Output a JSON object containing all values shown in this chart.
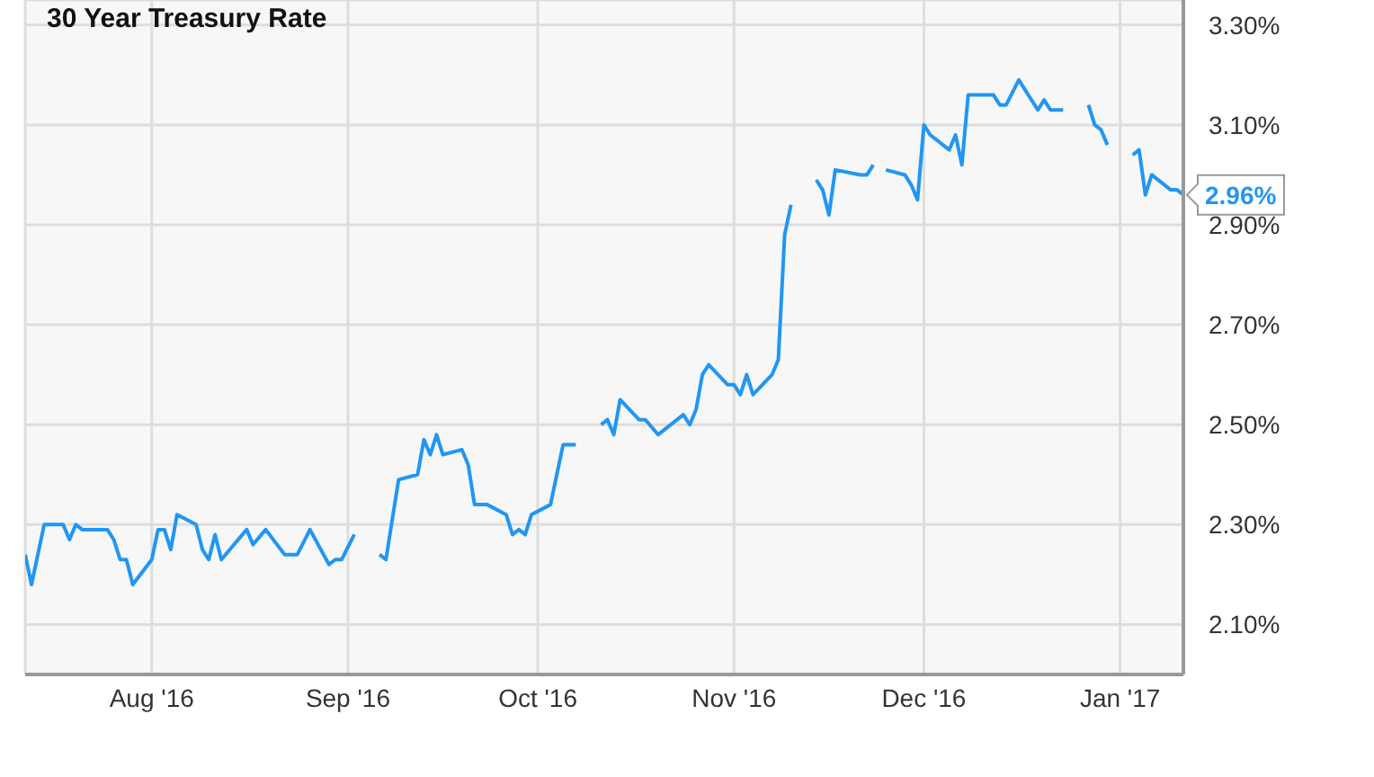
{
  "chart_data": {
    "type": "line",
    "title": "30 Year Treasury Rate",
    "x": [
      "2016-07-12",
      "2016-07-13",
      "2016-07-15",
      "2016-07-18",
      "2016-07-19",
      "2016-07-20",
      "2016-07-21",
      "2016-07-25",
      "2016-07-26",
      "2016-07-27",
      "2016-07-28",
      "2016-07-29",
      "2016-08-01",
      "2016-08-02",
      "2016-08-03",
      "2016-08-04",
      "2016-08-05",
      "2016-08-08",
      "2016-08-09",
      "2016-08-10",
      "2016-08-11",
      "2016-08-12",
      "2016-08-16",
      "2016-08-17",
      "2016-08-19",
      "2016-08-22",
      "2016-08-24",
      "2016-08-26",
      "2016-08-29",
      "2016-08-30",
      "2016-08-31",
      "2016-09-02",
      "2016-09-05",
      "2016-09-06",
      "2016-09-07",
      "2016-09-09",
      "2016-09-12",
      "2016-09-13",
      "2016-09-14",
      "2016-09-15",
      "2016-09-16",
      "2016-09-19",
      "2016-09-20",
      "2016-09-21",
      "2016-09-23",
      "2016-09-26",
      "2016-09-27",
      "2016-09-28",
      "2016-09-29",
      "2016-09-30",
      "2016-10-03",
      "2016-10-04",
      "2016-10-05",
      "2016-10-07",
      "2016-10-10",
      "2016-10-11",
      "2016-10-12",
      "2016-10-13",
      "2016-10-14",
      "2016-10-17",
      "2016-10-18",
      "2016-10-20",
      "2016-10-24",
      "2016-10-25",
      "2016-10-26",
      "2016-10-27",
      "2016-10-28",
      "2016-10-31",
      "2016-11-01",
      "2016-11-02",
      "2016-11-03",
      "2016-11-04",
      "2016-11-07",
      "2016-11-08",
      "2016-11-09",
      "2016-11-10",
      "2016-11-11",
      "2016-11-14",
      "2016-11-15",
      "2016-11-16",
      "2016-11-17",
      "2016-11-21",
      "2016-11-22",
      "2016-11-23",
      "2016-11-24",
      "2016-11-25",
      "2016-11-28",
      "2016-11-29",
      "2016-11-30",
      "2016-12-01",
      "2016-12-02",
      "2016-12-05",
      "2016-12-06",
      "2016-12-07",
      "2016-12-08",
      "2016-12-12",
      "2016-12-13",
      "2016-12-14",
      "2016-12-16",
      "2016-12-19",
      "2016-12-20",
      "2016-12-21",
      "2016-12-23",
      "2016-12-26",
      "2016-12-27",
      "2016-12-28",
      "2016-12-29",
      "2016-12-30",
      "2017-01-02",
      "2017-01-03",
      "2017-01-04",
      "2017-01-05",
      "2017-01-06",
      "2017-01-09",
      "2017-01-10",
      "2017-01-11"
    ],
    "series": [
      {
        "color": "#2196f3",
        "values": [
          2.24,
          2.18,
          2.3,
          2.3,
          2.27,
          2.3,
          2.29,
          2.29,
          2.27,
          2.23,
          2.23,
          2.18,
          2.23,
          2.29,
          2.29,
          2.25,
          2.32,
          2.3,
          2.25,
          2.23,
          2.28,
          2.23,
          2.29,
          2.26,
          2.29,
          2.24,
          2.24,
          2.29,
          2.22,
          2.23,
          2.23,
          2.28,
          null,
          2.24,
          2.23,
          2.39,
          2.4,
          2.47,
          2.44,
          2.48,
          2.44,
          2.45,
          2.42,
          2.34,
          2.34,
          2.32,
          2.28,
          2.29,
          2.28,
          2.32,
          2.34,
          2.4,
          2.46,
          2.46,
          null,
          2.5,
          2.51,
          2.48,
          2.55,
          2.51,
          2.51,
          2.48,
          2.52,
          2.5,
          2.53,
          2.6,
          2.62,
          2.58,
          2.58,
          2.56,
          2.6,
          2.56,
          2.6,
          2.63,
          2.88,
          2.94,
          null,
          2.99,
          2.97,
          2.92,
          3.01,
          3.0,
          3.0,
          3.02,
          null,
          3.01,
          3.0,
          2.98,
          2.95,
          3.1,
          3.08,
          3.05,
          3.08,
          3.02,
          3.16,
          3.16,
          3.14,
          3.14,
          3.19,
          3.13,
          3.15,
          3.13,
          3.13,
          null,
          3.14,
          3.1,
          3.09,
          3.06,
          null,
          3.04,
          3.05,
          2.96,
          3.0,
          2.97,
          2.97,
          2.96
        ],
        "value_labels": [
          null,
          null,
          null,
          null,
          null,
          null,
          null,
          null,
          null,
          null,
          null,
          null,
          null,
          null,
          null,
          null,
          null,
          null,
          null,
          null,
          null,
          null,
          null,
          null,
          null,
          null,
          null,
          null,
          null,
          null,
          null,
          null,
          null,
          null,
          null,
          null,
          null,
          null,
          null,
          null,
          null,
          null,
          null,
          null,
          null,
          null,
          null,
          null,
          null,
          null,
          null,
          null,
          null,
          null,
          null,
          null,
          null,
          null,
          null,
          null,
          null,
          null,
          null,
          null,
          null,
          null,
          null,
          null,
          null,
          null,
          null,
          null,
          null,
          null,
          null,
          null,
          null,
          null,
          null,
          null,
          null,
          null,
          null,
          null,
          null,
          null,
          null,
          null,
          null,
          null,
          null,
          null,
          null,
          null,
          null,
          null,
          null,
          null,
          null,
          null,
          null,
          null,
          null,
          null,
          null,
          null,
          null,
          null,
          null,
          null,
          null,
          null,
          null,
          null,
          null,
          "2.96%"
        ]
      }
    ],
    "xlim": [
      "2016-07-12",
      "2017-01-11"
    ],
    "xticks": [
      {
        "value": "2016-08-01",
        "label": "Aug '16"
      },
      {
        "value": "2016-09-01",
        "label": "Sep '16"
      },
      {
        "value": "2016-10-01",
        "label": "Oct '16"
      },
      {
        "value": "2016-11-01",
        "label": "Nov '16"
      },
      {
        "value": "2016-12-01",
        "label": "Dec '16"
      },
      {
        "value": "2017-01-01",
        "label": "Jan '17"
      }
    ],
    "ylim": [
      2.0,
      3.35
    ],
    "yticks": [
      {
        "value": 2.1,
        "label": "2.10%"
      },
      {
        "value": 2.3,
        "label": "2.30%"
      },
      {
        "value": 2.5,
        "label": "2.50%"
      },
      {
        "value": 2.7,
        "label": "2.70%"
      },
      {
        "value": 2.9,
        "label": "2.90%"
      },
      {
        "value": 3.1,
        "label": "3.10%"
      },
      {
        "value": 3.3,
        "label": "3.30%"
      }
    ],
    "grid": true,
    "legend": false,
    "marker": "none",
    "line_style": "solid"
  }
}
